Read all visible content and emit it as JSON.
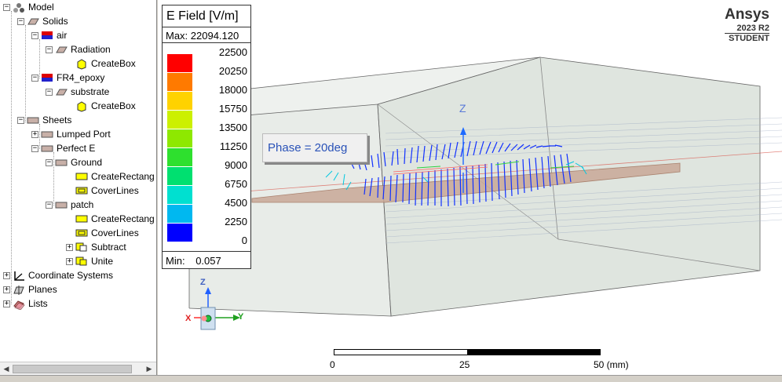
{
  "tree": {
    "items": [
      {
        "label": "Model"
      },
      {
        "label": "Solids"
      },
      {
        "label": "air"
      },
      {
        "label": "Radiation"
      },
      {
        "label": "CreateBox"
      },
      {
        "label": "FR4_epoxy"
      },
      {
        "label": "substrate"
      },
      {
        "label": "CreateBox"
      },
      {
        "label": "Sheets"
      },
      {
        "label": "Lumped Port"
      },
      {
        "label": "Perfect E"
      },
      {
        "label": "Ground"
      },
      {
        "label": "CreateRectang"
      },
      {
        "label": "CoverLines"
      },
      {
        "label": "patch"
      },
      {
        "label": "CreateRectang"
      },
      {
        "label": "CoverLines"
      },
      {
        "label": "Subtract"
      },
      {
        "label": "Unite"
      },
      {
        "label": "Coordinate Systems"
      },
      {
        "label": "Planes"
      },
      {
        "label": "Lists"
      }
    ]
  },
  "legend": {
    "title": "E Field [V/m]",
    "max_label": "Max: 22094.120",
    "min_label": "Min:",
    "min_value": "0.057",
    "levels": [
      {
        "value": "22500",
        "color": "#ff0000"
      },
      {
        "value": "20250",
        "color": "#ff7a00"
      },
      {
        "value": "18000",
        "color": "#ffd200"
      },
      {
        "value": "15750",
        "color": "#ccf000"
      },
      {
        "value": "13500",
        "color": "#8ee800"
      },
      {
        "value": "11250",
        "color": "#2ee02e"
      },
      {
        "value": "9000",
        "color": "#00e070"
      },
      {
        "value": "6750",
        "color": "#00e0d0"
      },
      {
        "value": "4500",
        "color": "#00b8f0"
      },
      {
        "value": "2250",
        "color": "#1f5fff"
      },
      {
        "value": "0",
        "color": "#0000ff"
      }
    ]
  },
  "phase": "Phase = 20deg",
  "logo": {
    "brand": "Ansys",
    "version": "2023 R2",
    "edition": "STUDENT"
  },
  "axes": {
    "z": "Z",
    "y": "Y",
    "x": "X"
  },
  "scale": {
    "ticks": [
      "0",
      "25",
      "50 (mm)"
    ]
  }
}
